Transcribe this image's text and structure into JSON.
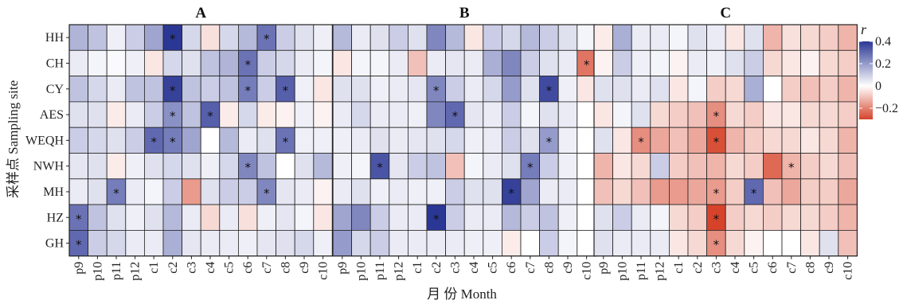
{
  "chart_data": {
    "type": "heatmap",
    "panels": [
      "A",
      "B",
      "C"
    ],
    "rows": [
      "HH",
      "CH",
      "CY",
      "AES",
      "WEQH",
      "NWH",
      "MH",
      "HZ",
      "GH"
    ],
    "columns": [
      "p9",
      "p10",
      "p11",
      "p12",
      "c1",
      "c2",
      "c3",
      "c4",
      "c5",
      "c6",
      "c7",
      "c8",
      "c9",
      "c10"
    ],
    "xlabel": "月 份 Month",
    "ylabel": "采样点 Sampling site",
    "legend": {
      "title": "r",
      "ticks": [
        0.4,
        0.2,
        0,
        -0.2
      ],
      "tick_labels": [
        "0.4",
        "0.2",
        "0",
        "−0.2"
      ],
      "range": [
        -0.3,
        0.4
      ],
      "colors": {
        "positive": "#2b3795",
        "neutral": "#ffffff",
        "negative": "#d6432a"
      }
    },
    "star_symbol": "*",
    "values": {
      "A": [
        [
          0.15,
          0.12,
          0.03,
          0.1,
          0.18,
          0.4,
          0.08,
          -0.05,
          0.08,
          0.14,
          0.28,
          0.1,
          0.06,
          0.03
        ],
        [
          0.04,
          0.02,
          0.01,
          0.03,
          -0.04,
          0.08,
          0.06,
          0.12,
          0.15,
          0.28,
          0.1,
          0.08,
          0.04,
          0.02
        ],
        [
          0.12,
          0.08,
          0.04,
          0.12,
          0.12,
          0.38,
          0.12,
          0.1,
          0.12,
          0.26,
          0.1,
          0.32,
          0.03,
          -0.04
        ],
        [
          0.06,
          0.06,
          -0.03,
          0.04,
          0.1,
          0.22,
          0.12,
          0.32,
          -0.03,
          0.08,
          -0.03,
          -0.02,
          0.03,
          -0.02
        ],
        [
          0.1,
          0.08,
          0.06,
          0.1,
          0.3,
          0.26,
          0.18,
          0.0,
          0.14,
          0.04,
          0.06,
          0.28,
          0.03,
          0.03
        ],
        [
          0.05,
          0.06,
          -0.03,
          0.03,
          0.06,
          0.08,
          0.06,
          0.03,
          0.08,
          0.24,
          0.12,
          0.0,
          0.06,
          0.14
        ],
        [
          0.04,
          0.06,
          0.26,
          0.04,
          0.02,
          0.1,
          -0.16,
          0.06,
          0.1,
          0.1,
          0.24,
          0.05,
          0.04,
          -0.02
        ],
        [
          0.28,
          0.12,
          0.06,
          0.03,
          0.06,
          0.14,
          0.04,
          -0.06,
          0.04,
          -0.05,
          0.03,
          0.05,
          0.02,
          -0.04
        ],
        [
          0.3,
          0.1,
          0.08,
          0.04,
          0.04,
          0.16,
          0.05,
          0.04,
          0.04,
          0.03,
          0.05,
          0.06,
          0.08,
          0.03
        ]
      ],
      "B": [
        [
          0.14,
          0.04,
          0.06,
          0.1,
          0.06,
          0.24,
          0.14,
          -0.04,
          0.1,
          0.08,
          0.14,
          0.1,
          0.06,
          0.02
        ],
        [
          -0.04,
          0.02,
          0.02,
          0.04,
          -0.1,
          0.04,
          0.05,
          0.04,
          0.16,
          0.24,
          0.1,
          0.06,
          0.04,
          -0.22
        ],
        [
          0.06,
          0.06,
          0.03,
          0.04,
          0.05,
          0.24,
          0.1,
          0.04,
          0.08,
          0.2,
          0.06,
          0.36,
          0.03,
          -0.04
        ],
        [
          0.04,
          0.08,
          0.04,
          0.04,
          0.03,
          0.24,
          0.3,
          0.05,
          0.04,
          0.1,
          0.02,
          0.06,
          0.04,
          0.0
        ],
        [
          0.03,
          0.04,
          0.06,
          0.04,
          0.05,
          0.06,
          0.08,
          0.03,
          0.04,
          0.1,
          0.06,
          0.2,
          0.03,
          0.0
        ],
        [
          0.03,
          0.02,
          0.34,
          0.05,
          0.1,
          0.12,
          -0.1,
          0.02,
          0.04,
          0.06,
          0.26,
          0.1,
          0.03,
          0.0
        ],
        [
          0.04,
          0.06,
          0.03,
          0.04,
          0.03,
          0.03,
          0.1,
          0.06,
          0.06,
          0.38,
          0.18,
          0.04,
          0.04,
          0.0
        ],
        [
          0.18,
          0.24,
          0.1,
          0.04,
          0.04,
          0.4,
          0.1,
          0.04,
          0.04,
          0.14,
          0.1,
          0.12,
          0.03,
          0.0
        ],
        [
          0.2,
          0.08,
          0.1,
          0.04,
          0.04,
          0.04,
          0.04,
          0.03,
          0.03,
          -0.03,
          0.0,
          0.1,
          0.02,
          0.0
        ]
      ],
      "C": [
        [
          -0.03,
          0.16,
          0.04,
          0.04,
          0.02,
          0.06,
          0.04,
          -0.04,
          0.06,
          -0.12,
          -0.05,
          -0.06,
          -0.08,
          -0.12
        ],
        [
          -0.02,
          0.1,
          0.03,
          0.02,
          -0.02,
          0.04,
          0.03,
          0.06,
          0.1,
          -0.06,
          -0.04,
          -0.02,
          -0.06,
          -0.08
        ],
        [
          0.06,
          0.06,
          0.04,
          0.06,
          -0.04,
          0.02,
          -0.08,
          -0.06,
          0.16,
          0.0,
          -0.08,
          -0.1,
          -0.08,
          -0.12
        ],
        [
          -0.04,
          0.02,
          0.06,
          -0.06,
          -0.08,
          -0.1,
          -0.18,
          -0.06,
          -0.08,
          -0.04,
          -0.04,
          -0.06,
          -0.06,
          -0.08
        ],
        [
          0.06,
          -0.04,
          -0.18,
          -0.14,
          -0.1,
          -0.14,
          -0.28,
          -0.12,
          -0.08,
          -0.06,
          -0.06,
          -0.04,
          -0.06,
          -0.12
        ],
        [
          -0.12,
          -0.04,
          -0.06,
          0.1,
          -0.08,
          -0.1,
          -0.12,
          -0.06,
          -0.08,
          -0.24,
          -0.12,
          -0.08,
          -0.06,
          -0.1
        ],
        [
          -0.1,
          -0.06,
          -0.1,
          -0.16,
          -0.16,
          -0.14,
          -0.16,
          -0.08,
          0.3,
          -0.1,
          -0.14,
          -0.08,
          -0.08,
          -0.14
        ],
        [
          0.06,
          0.1,
          0.04,
          0.02,
          -0.06,
          -0.08,
          -0.3,
          -0.08,
          -0.06,
          -0.08,
          -0.06,
          -0.06,
          -0.08,
          -0.12
        ],
        [
          0.06,
          0.04,
          0.04,
          0.04,
          -0.04,
          -0.06,
          -0.18,
          -0.06,
          -0.02,
          0.0,
          0.0,
          -0.04,
          0.06,
          -0.1
        ]
      ]
    },
    "significant": {
      "A": [
        [
          0,
          5
        ],
        [
          0,
          10
        ],
        [
          1,
          9
        ],
        [
          2,
          5
        ],
        [
          2,
          9
        ],
        [
          2,
          11
        ],
        [
          3,
          5
        ],
        [
          3,
          7
        ],
        [
          4,
          4
        ],
        [
          4,
          5
        ],
        [
          4,
          11
        ],
        [
          5,
          9
        ],
        [
          6,
          2
        ],
        [
          6,
          10
        ],
        [
          7,
          0
        ],
        [
          8,
          0
        ]
      ],
      "B": [
        [
          1,
          13
        ],
        [
          2,
          5
        ],
        [
          2,
          11
        ],
        [
          3,
          6
        ],
        [
          4,
          11
        ],
        [
          5,
          2
        ],
        [
          5,
          10
        ],
        [
          6,
          9
        ],
        [
          7,
          5
        ]
      ],
      "C": [
        [
          3,
          6
        ],
        [
          4,
          2
        ],
        [
          4,
          6
        ],
        [
          5,
          10
        ],
        [
          6,
          6
        ],
        [
          6,
          8
        ],
        [
          7,
          6
        ],
        [
          8,
          6
        ]
      ]
    }
  }
}
